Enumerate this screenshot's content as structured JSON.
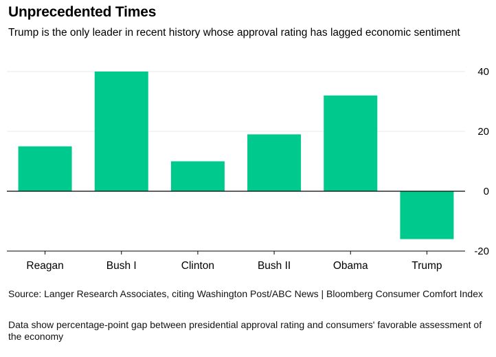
{
  "header": {
    "title": "Unprecedented Times",
    "subtitle": "Trump is the only leader in recent history whose approval rating has lagged economic sentiment"
  },
  "footer": {
    "source": "Source: Langer Research Associates, citing Washington Post/ABC News | Bloomberg Consumer Comfort Index",
    "note": "Data show percentage-point gap between presidential approval rating and consumers' favorable assessment of the economy"
  },
  "colors": {
    "bar": "#00c98d",
    "zero_line": "#000000",
    "grid": "#e8e8e8"
  },
  "chart_data": {
    "type": "bar",
    "title": "Unprecedented Times",
    "subtitle": "Trump is the only leader in recent history whose approval rating has lagged economic sentiment",
    "categories": [
      "Reagan",
      "Bush I",
      "Clinton",
      "Bush II",
      "Obama",
      "Trump"
    ],
    "values": [
      15,
      40,
      10,
      19,
      32,
      -16
    ],
    "xlabel": "",
    "ylabel": "",
    "ylim": [
      -20,
      40
    ],
    "yticks": [
      40,
      20,
      0,
      -20
    ],
    "y_axis_side": "right",
    "grid": true,
    "legend": "none"
  }
}
